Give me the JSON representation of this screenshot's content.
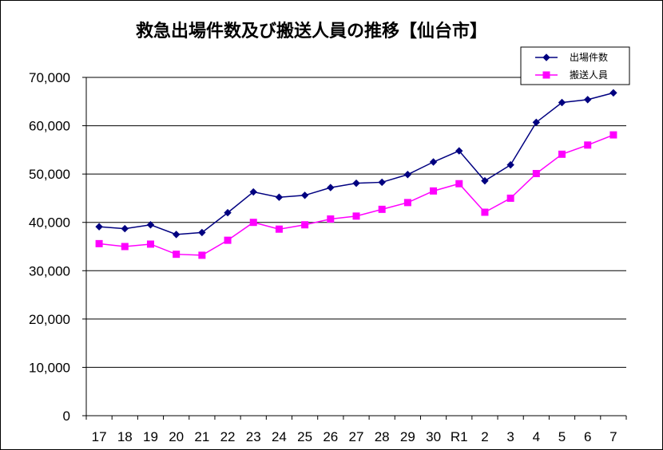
{
  "chart_data": {
    "type": "line",
    "title": "救急出場件数及び搬送人員の推移【仙台市】",
    "xlabel": "",
    "ylabel": "",
    "categories": [
      "17",
      "18",
      "19",
      "20",
      "21",
      "22",
      "23",
      "24",
      "25",
      "26",
      "27",
      "28",
      "29",
      "30",
      "R1",
      "2",
      "3",
      "4",
      "5",
      "6",
      "7"
    ],
    "ylim": [
      0,
      70000
    ],
    "yticks": [
      {
        "value": 0,
        "label": "0"
      },
      {
        "value": 10000,
        "label": "10,000"
      },
      {
        "value": 20000,
        "label": "20,000"
      },
      {
        "value": 30000,
        "label": "30,000"
      },
      {
        "value": 40000,
        "label": "40,000"
      },
      {
        "value": 50000,
        "label": "50,000"
      },
      {
        "value": 60000,
        "label": "60,000"
      },
      {
        "value": 70000,
        "label": "70,000"
      }
    ],
    "grid": true,
    "legend_position": "top-right",
    "series": [
      {
        "name": "出場件数",
        "color": "#000080",
        "marker": "diamond",
        "values": [
          39100,
          38700,
          39500,
          37500,
          37900,
          42000,
          46300,
          45200,
          45600,
          47200,
          48100,
          48300,
          49900,
          52500,
          54800,
          48600,
          51900,
          60700,
          64800,
          65400,
          66800
        ]
      },
      {
        "name": "搬送人員",
        "color": "#FF00FF",
        "marker": "square",
        "values": [
          35600,
          35000,
          35500,
          33400,
          33200,
          36300,
          40000,
          38600,
          39500,
          40700,
          41300,
          42700,
          44100,
          46500,
          48000,
          42100,
          45000,
          50100,
          54100,
          56000,
          58100
        ]
      }
    ]
  }
}
